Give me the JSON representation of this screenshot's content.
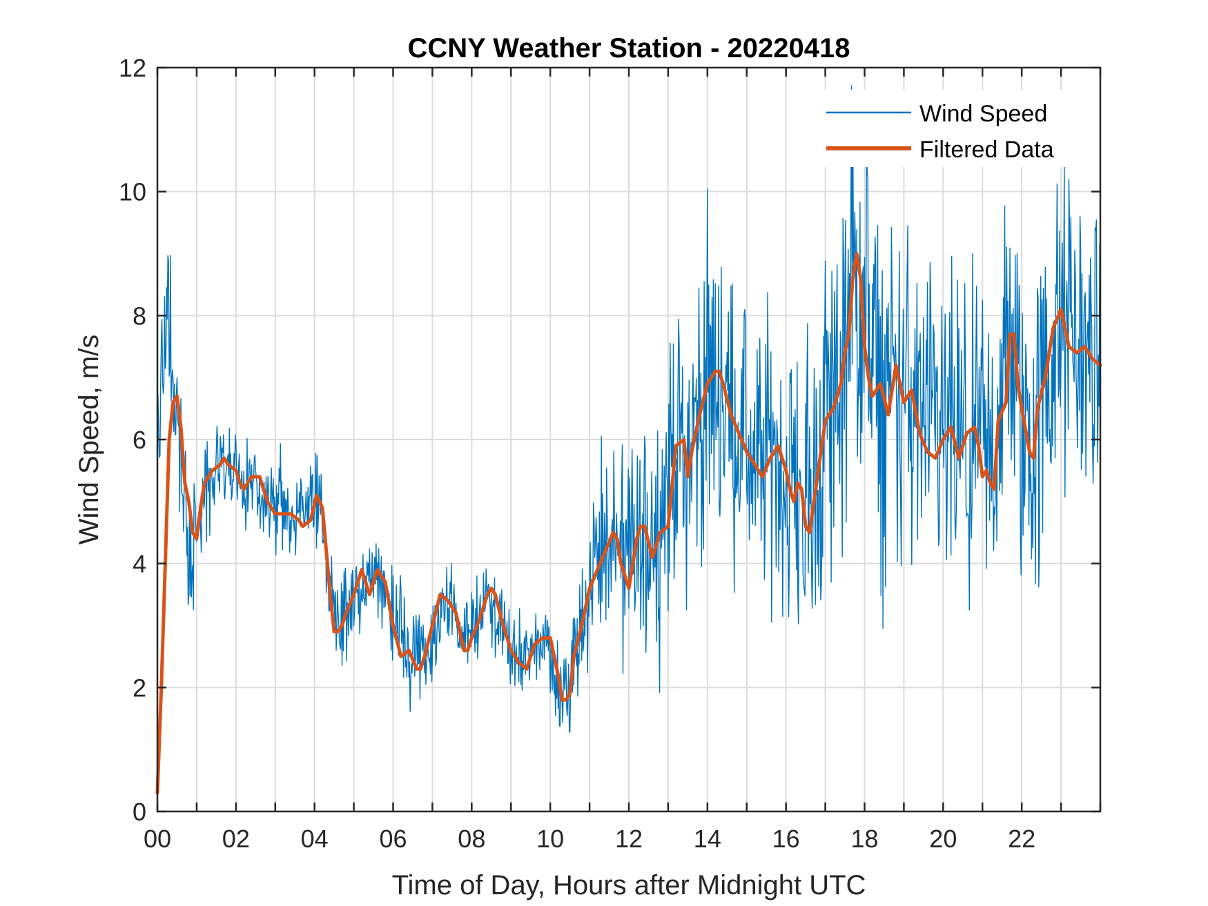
{
  "chart_data": {
    "type": "line",
    "title": "CCNY Weather Station - 20220418",
    "xlabel": "Time of Day, Hours after Midnight UTC",
    "ylabel": "Wind Speed, m/s",
    "xlim": [
      0,
      24
    ],
    "ylim": [
      0,
      12
    ],
    "x_ticks": [
      0,
      2,
      4,
      6,
      8,
      10,
      12,
      14,
      16,
      18,
      20,
      22
    ],
    "x_tick_labels": [
      "00",
      "02",
      "04",
      "06",
      "08",
      "10",
      "12",
      "14",
      "16",
      "18",
      "20",
      "22"
    ],
    "x_minor_grid_step": 1,
    "y_ticks": [
      0,
      2,
      4,
      6,
      8,
      10,
      12
    ],
    "y_tick_labels": [
      "0",
      "2",
      "4",
      "6",
      "8",
      "10",
      "12"
    ],
    "grid": true,
    "legend_position": "top-right",
    "series": [
      {
        "name": "Wind Speed",
        "color": "#0072BD",
        "style": "noisy-raw",
        "x": [
          0,
          0.15,
          0.25,
          0.35,
          0.5,
          0.65,
          0.8,
          1.0,
          1.2,
          1.5,
          1.8,
          2.1,
          2.4,
          2.7,
          3.0,
          3.3,
          3.6,
          3.9,
          4.1,
          4.3,
          4.5,
          4.8,
          5.1,
          5.4,
          5.7,
          6.0,
          6.3,
          6.6,
          6.9,
          7.2,
          7.5,
          7.8,
          8.1,
          8.4,
          8.7,
          9.0,
          9.3,
          9.6,
          9.9,
          10.2,
          10.4,
          10.7,
          11.0,
          11.3,
          11.6,
          11.9,
          12.2,
          12.5,
          12.8,
          13.1,
          13.4,
          13.7,
          14.0,
          14.2,
          14.5,
          14.8,
          15.1,
          15.4,
          15.7,
          16.0,
          16.3,
          16.6,
          16.9,
          17.2,
          17.5,
          17.7,
          17.9,
          18.2,
          18.5,
          18.8,
          19.1,
          19.4,
          19.7,
          20.0,
          20.3,
          20.6,
          20.9,
          21.1,
          21.4,
          21.7,
          22.0,
          22.3,
          22.6,
          22.9,
          23.2,
          23.5,
          23.8,
          24.0
        ],
        "values": [
          6.0,
          7.2,
          8.0,
          7.5,
          6.6,
          5.0,
          4.2,
          4.4,
          5.2,
          5.5,
          5.6,
          5.3,
          5.4,
          5.1,
          4.9,
          4.8,
          4.7,
          4.9,
          5.0,
          4.1,
          3.0,
          3.1,
          3.5,
          3.8,
          3.7,
          3.2,
          2.6,
          2.5,
          2.4,
          3.3,
          3.2,
          2.7,
          3.1,
          3.5,
          3.0,
          2.7,
          2.4,
          2.6,
          2.7,
          2.0,
          1.9,
          3.0,
          3.8,
          4.1,
          4.4,
          3.8,
          4.3,
          4.4,
          4.7,
          5.8,
          5.7,
          6.2,
          6.8,
          7.0,
          6.6,
          6.0,
          5.8,
          5.6,
          5.8,
          5.3,
          5.2,
          4.7,
          6.1,
          6.7,
          7.2,
          8.1,
          8.6,
          7.0,
          6.5,
          6.9,
          6.6,
          6.4,
          6.0,
          5.9,
          6.0,
          5.7,
          5.6,
          5.4,
          6.4,
          7.5,
          6.3,
          5.8,
          6.8,
          7.6,
          7.8,
          7.5,
          7.3,
          7.2
        ],
        "amplitude": [
          0.8,
          1.2,
          1.4,
          1.3,
          1.1,
          0.9,
          0.8,
          0.7,
          0.6,
          0.6,
          0.6,
          0.6,
          0.6,
          0.5,
          0.5,
          0.5,
          0.5,
          0.6,
          0.7,
          0.6,
          0.6,
          0.6,
          0.6,
          0.6,
          0.6,
          0.6,
          0.6,
          0.6,
          0.5,
          0.5,
          0.5,
          0.5,
          0.5,
          0.5,
          0.5,
          0.5,
          0.5,
          0.5,
          0.6,
          0.7,
          0.8,
          0.9,
          1.2,
          1.3,
          1.4,
          1.3,
          1.3,
          1.4,
          1.5,
          1.6,
          1.7,
          1.8,
          1.9,
          1.9,
          1.7,
          1.6,
          1.6,
          1.6,
          1.6,
          1.7,
          1.8,
          1.9,
          2.2,
          2.4,
          2.6,
          2.7,
          2.6,
          2.3,
          2.2,
          2.1,
          2.1,
          2.0,
          2.0,
          2.0,
          2.0,
          2.0,
          2.1,
          2.1,
          2.1,
          2.1,
          2.2,
          2.2,
          2.1,
          2.0,
          2.0,
          1.9,
          1.8,
          1.7
        ]
      },
      {
        "name": "Filtered Data",
        "color": "#D95319",
        "style": "smooth",
        "x": [
          0.0,
          0.1,
          0.2,
          0.3,
          0.4,
          0.5,
          0.6,
          0.7,
          0.8,
          0.9,
          1.0,
          1.1,
          1.2,
          1.4,
          1.6,
          1.7,
          1.8,
          2.0,
          2.1,
          2.2,
          2.4,
          2.6,
          2.7,
          2.8,
          3.0,
          3.2,
          3.4,
          3.6,
          3.7,
          3.9,
          4.05,
          4.2,
          4.3,
          4.4,
          4.5,
          4.6,
          4.7,
          4.8,
          5.0,
          5.2,
          5.4,
          5.6,
          5.8,
          6.0,
          6.2,
          6.4,
          6.6,
          6.7,
          6.8,
          7.0,
          7.2,
          7.4,
          7.6,
          7.8,
          7.9,
          8.0,
          8.2,
          8.4,
          8.5,
          8.6,
          8.8,
          9.0,
          9.2,
          9.4,
          9.6,
          9.8,
          10.0,
          10.2,
          10.3,
          10.4,
          10.5,
          10.6,
          10.8,
          11.0,
          11.2,
          11.4,
          11.6,
          11.7,
          11.8,
          12.0,
          12.2,
          12.3,
          12.4,
          12.6,
          12.8,
          13.0,
          13.2,
          13.4,
          13.5,
          13.6,
          13.8,
          14.0,
          14.2,
          14.3,
          14.4,
          14.6,
          14.8,
          15.0,
          15.2,
          15.4,
          15.6,
          15.8,
          16.0,
          16.1,
          16.2,
          16.3,
          16.4,
          16.5,
          16.6,
          16.8,
          17.0,
          17.2,
          17.4,
          17.5,
          17.6,
          17.7,
          17.8,
          17.9,
          18.0,
          18.1,
          18.2,
          18.4,
          18.6,
          18.8,
          19.0,
          19.2,
          19.4,
          19.6,
          19.8,
          20.0,
          20.2,
          20.4,
          20.6,
          20.8,
          20.9,
          21.0,
          21.1,
          21.2,
          21.3,
          21.4,
          21.6,
          21.7,
          21.8,
          21.9,
          22.0,
          22.2,
          22.3,
          22.4,
          22.6,
          22.8,
          23.0,
          23.2,
          23.4,
          23.6,
          23.8,
          24.0
        ],
        "values": [
          0.3,
          2.0,
          4.0,
          6.0,
          6.6,
          6.7,
          6.2,
          5.3,
          5.0,
          4.5,
          4.4,
          4.9,
          5.3,
          5.5,
          5.6,
          5.7,
          5.6,
          5.5,
          5.3,
          5.2,
          5.4,
          5.4,
          5.2,
          5.0,
          4.8,
          4.8,
          4.8,
          4.7,
          4.6,
          4.7,
          5.1,
          4.9,
          4.2,
          3.5,
          2.9,
          2.9,
          3.0,
          3.2,
          3.5,
          3.9,
          3.5,
          3.9,
          3.7,
          3.0,
          2.5,
          2.6,
          2.3,
          2.3,
          2.5,
          3.0,
          3.5,
          3.4,
          3.2,
          2.6,
          2.6,
          2.8,
          3.1,
          3.5,
          3.6,
          3.5,
          3.0,
          2.6,
          2.4,
          2.3,
          2.7,
          2.8,
          2.8,
          2.2,
          1.8,
          1.8,
          1.9,
          2.5,
          3.0,
          3.6,
          3.9,
          4.2,
          4.5,
          4.4,
          4.0,
          3.6,
          4.4,
          4.6,
          4.6,
          4.1,
          4.5,
          4.6,
          5.9,
          6.0,
          5.4,
          5.8,
          6.4,
          6.9,
          7.1,
          7.1,
          6.9,
          6.4,
          6.1,
          5.8,
          5.6,
          5.4,
          5.7,
          5.9,
          5.5,
          5.2,
          5.0,
          5.3,
          5.2,
          4.6,
          4.5,
          5.4,
          6.3,
          6.5,
          6.9,
          7.4,
          7.7,
          8.6,
          9.0,
          8.6,
          7.5,
          7.0,
          6.7,
          6.9,
          6.4,
          7.2,
          6.6,
          6.8,
          6.1,
          5.8,
          5.7,
          6.0,
          6.2,
          5.7,
          6.1,
          6.2,
          5.9,
          5.4,
          5.5,
          5.3,
          5.2,
          6.3,
          6.6,
          7.7,
          7.7,
          6.9,
          6.5,
          5.8,
          5.7,
          6.5,
          7.0,
          7.8,
          8.1,
          7.5,
          7.4,
          7.5,
          7.3,
          7.2
        ]
      }
    ]
  }
}
